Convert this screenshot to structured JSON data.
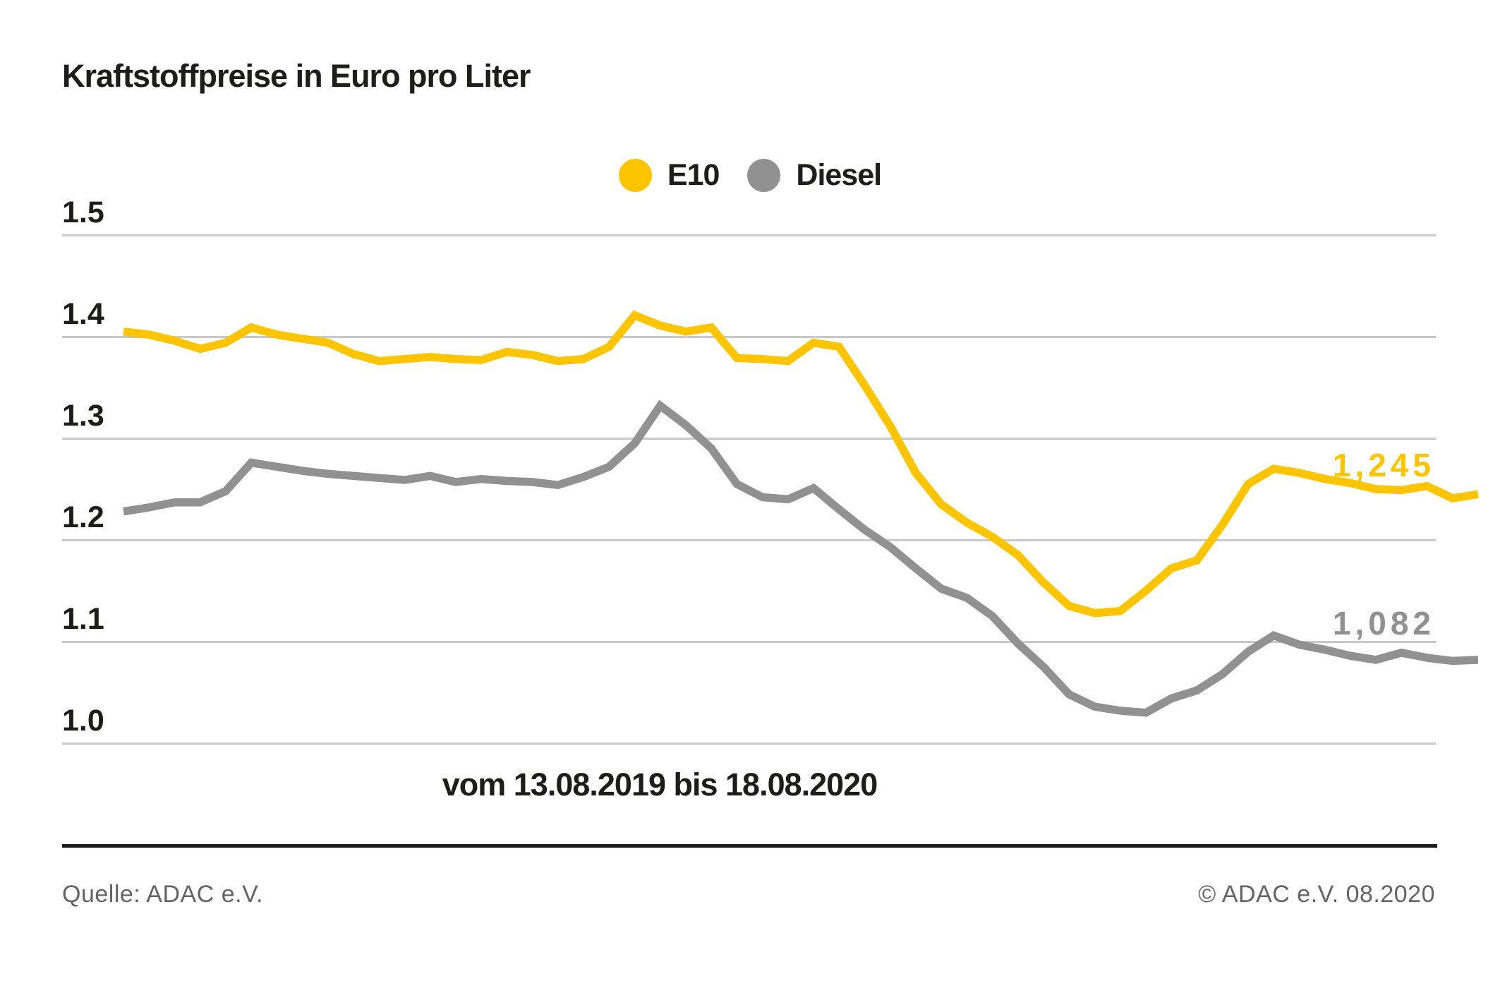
{
  "title": "Kraftstoffpreise in Euro pro Liter",
  "footer": {
    "source": "Quelle: ADAC e.V.",
    "copyright": "© ADAC e.V. 08.2020"
  },
  "colors": {
    "e10": "#fdc500",
    "diesel": "#919191",
    "gridline": "#c9c9c9",
    "text": "#1d1d1b",
    "footer_text": "#646464"
  },
  "chart_data": {
    "type": "line",
    "title": "Kraftstoffpreise in Euro pro Liter",
    "xlabel": "vom 13.08.2019 bis 18.08.2020",
    "ylabel": "Euro pro Liter",
    "ylim": [
      1.0,
      1.5
    ],
    "yticks": [
      "1.5",
      "1.4",
      "1.3",
      "1.2",
      "1.1",
      "1.0"
    ],
    "ytick_values": [
      1.5,
      1.4,
      1.3,
      1.2,
      1.1,
      1.0
    ],
    "grid": true,
    "legend_position": "top-center",
    "x_start_date": "13.08.2019",
    "x_end_date": "18.08.2020",
    "x_interval": "weekly",
    "series": [
      {
        "name": "E10",
        "color": "#fdc500",
        "end_label": "1,245",
        "end_value": 1.245,
        "values": [
          1.405,
          1.402,
          1.396,
          1.388,
          1.394,
          1.409,
          1.402,
          1.398,
          1.394,
          1.383,
          1.376,
          1.378,
          1.38,
          1.378,
          1.377,
          1.385,
          1.382,
          1.376,
          1.378,
          1.39,
          1.421,
          1.411,
          1.405,
          1.409,
          1.379,
          1.378,
          1.376,
          1.394,
          1.39,
          1.352,
          1.312,
          1.266,
          1.235,
          1.217,
          1.203,
          1.185,
          1.158,
          1.135,
          1.128,
          1.13,
          1.15,
          1.172,
          1.18,
          1.215,
          1.255,
          1.27,
          1.266,
          1.26,
          1.256,
          1.25,
          1.249,
          1.253,
          1.241,
          1.245
        ]
      },
      {
        "name": "Diesel",
        "color": "#919191",
        "end_label": "1,082",
        "end_value": 1.082,
        "values": [
          1.228,
          1.232,
          1.237,
          1.237,
          1.248,
          1.276,
          1.272,
          1.268,
          1.265,
          1.263,
          1.261,
          1.259,
          1.263,
          1.257,
          1.26,
          1.258,
          1.257,
          1.254,
          1.262,
          1.272,
          1.295,
          1.332,
          1.313,
          1.29,
          1.255,
          1.242,
          1.24,
          1.251,
          1.23,
          1.21,
          1.193,
          1.172,
          1.152,
          1.143,
          1.125,
          1.098,
          1.075,
          1.048,
          1.036,
          1.032,
          1.03,
          1.044,
          1.052,
          1.068,
          1.09,
          1.106,
          1.097,
          1.092,
          1.086,
          1.082,
          1.089,
          1.084,
          1.081,
          1.082
        ]
      }
    ]
  }
}
